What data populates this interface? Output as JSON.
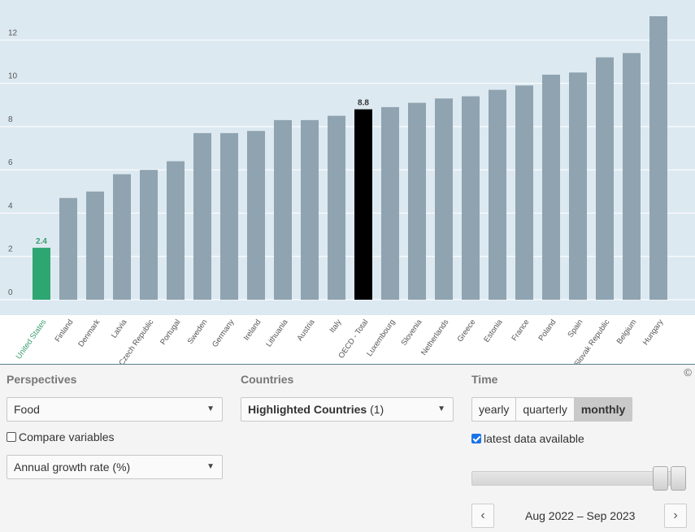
{
  "chart_data": {
    "type": "bar",
    "categories": [
      "United States",
      "Finland",
      "Denmark",
      "Latvia",
      "Czech Republic",
      "Portugal",
      "Sweden",
      "Germany",
      "Ireland",
      "Lithuania",
      "Austria",
      "Italy",
      "OECD - Total",
      "Luxembourg",
      "Slovenia",
      "Netherlands",
      "Greece",
      "Estonia",
      "France",
      "Poland",
      "Spain",
      "Slovak Republic",
      "Belgium",
      "Hungary"
    ],
    "values": [
      2.4,
      4.7,
      5.0,
      5.8,
      6.0,
      6.4,
      7.7,
      7.7,
      7.8,
      8.3,
      8.3,
      8.5,
      8.8,
      8.9,
      9.1,
      9.3,
      9.4,
      9.7,
      9.9,
      10.4,
      10.5,
      11.2,
      11.4,
      13.1
    ],
    "data_labels": {
      "United States": "2.4",
      "OECD - Total": "8.8"
    },
    "highlighted": "United States",
    "reference": "OECD - Total",
    "yticks": [
      0,
      2,
      4,
      6,
      8,
      10,
      12
    ],
    "ylim": [
      0,
      13.3
    ],
    "grid": true,
    "colors": {
      "default": "#8fa4b0",
      "highlight": "#2ea672",
      "reference": "#000000",
      "highlight_label": "#3a9d6e",
      "background": "#dde9f1"
    }
  },
  "copyright": "©",
  "perspectives": {
    "title": "Perspectives",
    "indicator": "Food",
    "compare_label": "Compare variables",
    "compare_checked": false,
    "measure": "Annual growth rate (%)"
  },
  "countries": {
    "title": "Countries",
    "selection_label": "Highlighted Countries",
    "selection_count": "(1)"
  },
  "time": {
    "title": "Time",
    "options": [
      "yearly",
      "quarterly",
      "monthly"
    ],
    "active": "monthly",
    "latest_label": "latest data available",
    "latest_checked": true,
    "range": "Aug 2022 – Sep 2023",
    "prev_icon": "chevron-left-icon",
    "next_icon": "chevron-right-icon"
  }
}
